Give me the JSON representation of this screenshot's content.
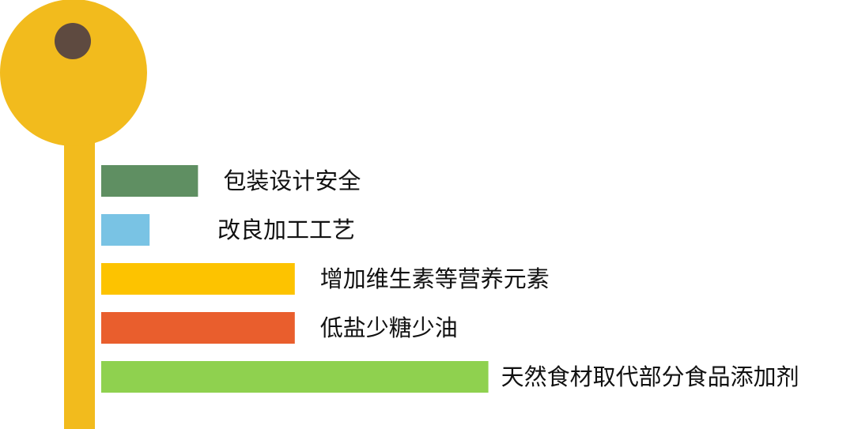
{
  "chart_data": {
    "type": "bar",
    "orientation": "horizontal",
    "categories": [
      "包装设计安全",
      "改良加工工艺",
      "增加维生素等营养元素",
      "低盐少糖少油",
      "天然食材取代部分食品添加剂"
    ],
    "values": [
      2,
      1,
      4,
      4,
      8
    ],
    "colors": [
      "#5f8f62",
      "#79c3e4",
      "#fdc300",
      "#e95e2d",
      "#8fd14f"
    ],
    "title": "",
    "xlabel": "",
    "ylabel": "",
    "xlim": [
      0,
      8
    ],
    "grid": false,
    "legend": "none",
    "decoration": {
      "shape": "key",
      "key_color": "#f2bb1d",
      "hole_color": "#5e4a40"
    }
  }
}
